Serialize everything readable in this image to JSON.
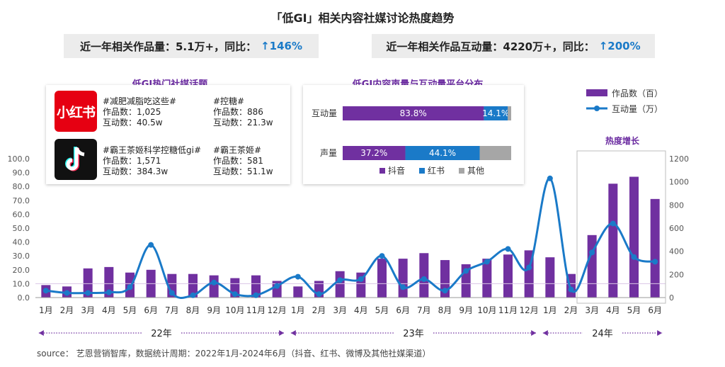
{
  "title": "「低GI」相关内容社媒讨论热度趋势",
  "stat_left": {
    "label": "近一年相关作品量：5.1万+，同比：",
    "highlight": "↑146%"
  },
  "stat_right": {
    "label": "近一年相关作品互动量：4220万+，同比：",
    "highlight": "↑200%"
  },
  "hot_topics": {
    "title": "低GI热门社媒话题",
    "xiaohongshu_logo_text": "小红书",
    "rows": [
      [
        {
          "tag": "#减肥减脂吃这些#",
          "works": "作品数：1,025",
          "interactions": "互动数：40.5w"
        },
        {
          "tag": "#控糖#",
          "works": "作品数：886",
          "interactions": "互动数：21.3w"
        }
      ],
      [
        {
          "tag": "#霸王茶姬科学控糖低gi#",
          "works": "作品数：1,571",
          "interactions": "互动数：384.3w"
        },
        {
          "tag": "#霸王茶姬#",
          "works": "作品数：581",
          "interactions": "互动数：51.1w"
        }
      ]
    ]
  },
  "platform_panel": {
    "title": "低GI内容声量与互动量平台分布",
    "bars": [
      {
        "label": "互动量",
        "segments": [
          83.8,
          14.1,
          2.1
        ],
        "labels": [
          "83.8%",
          "14.1%",
          ""
        ]
      },
      {
        "label": "声量",
        "segments": [
          37.2,
          44.1,
          18.7
        ],
        "labels": [
          "37.2%",
          "44.1%",
          ""
        ]
      }
    ],
    "legend": [
      "抖音",
      "红书",
      "其他"
    ],
    "colors": [
      "#7030a0",
      "#1a7ac8",
      "#a6a6a6"
    ]
  },
  "legend": {
    "bars": "作品数（百）",
    "line": "互动量（万）"
  },
  "heat_growth_label": "热度增长",
  "years": [
    "22年",
    "23年",
    "24年"
  ],
  "source": "source： 艺恩营销智库，数据统计周期：2022年1月-2024年6月（抖音、红书、微博及其他社媒渠道）",
  "chart_data": {
    "type": "bar",
    "categories": [
      "1月",
      "2月",
      "3月",
      "4月",
      "5月",
      "6月",
      "7月",
      "8月",
      "9月",
      "10月",
      "11月",
      "12月",
      "1月",
      "2月",
      "3月",
      "4月",
      "5月",
      "6月",
      "7月",
      "8月",
      "9月",
      "10月",
      "11月",
      "12月",
      "1月",
      "2月",
      "3月",
      "4月",
      "5月",
      "6月"
    ],
    "series": [
      {
        "name": "作品数（百）",
        "axis": "left",
        "type": "bar",
        "values": [
          9,
          8,
          21,
          22,
          18,
          20,
          17,
          17,
          16,
          14,
          16,
          12,
          8,
          12,
          19,
          18,
          28,
          28,
          32,
          27,
          24,
          28,
          31,
          34,
          29,
          17,
          45,
          82,
          87,
          71
        ]
      },
      {
        "name": "互动量（万）",
        "axis": "right",
        "type": "line",
        "values": [
          60,
          40,
          40,
          45,
          90,
          455,
          40,
          20,
          130,
          30,
          20,
          100,
          180,
          30,
          150,
          160,
          360,
          90,
          160,
          60,
          230,
          310,
          420,
          260,
          1030,
          70,
          390,
          640,
          350,
          310
        ]
      }
    ],
    "y_left": {
      "min": 0,
      "max": 100,
      "ticks": [
        "0.0",
        "10.0",
        "20.0",
        "30.0",
        "40.0",
        "50.0",
        "60.0",
        "70.0",
        "80.0",
        "90.0",
        "100.0"
      ]
    },
    "y_right": {
      "min": 0,
      "max": 1200,
      "ticks": [
        "0",
        "200",
        "400",
        "600",
        "800",
        "1000",
        "1200"
      ]
    },
    "colors": {
      "bar": "#7030a0",
      "line": "#1a7ac8"
    }
  }
}
